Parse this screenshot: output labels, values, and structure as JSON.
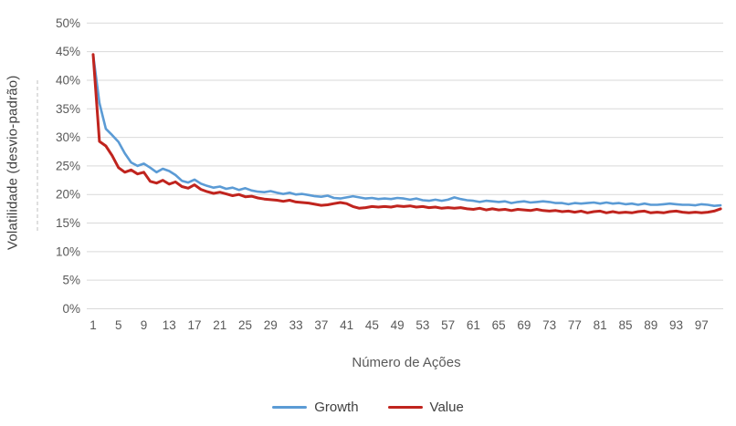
{
  "chart_data": {
    "type": "line",
    "title": "",
    "xlabel": "Número de Ações",
    "ylabel": "Volatilidade (desvio-padrão)",
    "x_min": 1,
    "x_max": 100,
    "ylim_percent": [
      0,
      50
    ],
    "grid": "horizontal",
    "legend_position": "bottom",
    "y_tick_values": [
      0,
      5,
      10,
      15,
      20,
      25,
      30,
      35,
      40,
      45,
      50
    ],
    "y_tick_labels": [
      "0%",
      "5%",
      "10%",
      "15%",
      "20%",
      "25%",
      "30%",
      "35%",
      "40%",
      "45%",
      "50%"
    ],
    "x_tick_values": [
      1,
      5,
      9,
      13,
      17,
      21,
      25,
      29,
      33,
      37,
      41,
      45,
      49,
      53,
      57,
      61,
      65,
      69,
      73,
      77,
      81,
      85,
      89,
      93,
      97
    ],
    "x_tick_labels": [
      "1",
      "5",
      "9",
      "13",
      "17",
      "21",
      "25",
      "29",
      "33",
      "37",
      "41",
      "45",
      "49",
      "53",
      "57",
      "61",
      "65",
      "69",
      "73",
      "77",
      "81",
      "85",
      "89",
      "93",
      "97"
    ],
    "series": [
      {
        "name": "Growth",
        "color": "#5B9BD5",
        "values": [
          44.5,
          36.0,
          31.5,
          30.4,
          29.2,
          27.2,
          25.6,
          25.0,
          25.4,
          24.7,
          23.9,
          24.5,
          24.1,
          23.4,
          22.4,
          22.1,
          22.6,
          21.9,
          21.5,
          21.2,
          21.4,
          21.0,
          21.2,
          20.8,
          21.1,
          20.7,
          20.5,
          20.4,
          20.6,
          20.3,
          20.1,
          20.3,
          20.0,
          20.1,
          19.9,
          19.7,
          19.6,
          19.8,
          19.4,
          19.3,
          19.5,
          19.7,
          19.5,
          19.3,
          19.4,
          19.2,
          19.3,
          19.2,
          19.4,
          19.3,
          19.1,
          19.3,
          19.0,
          18.9,
          19.1,
          18.9,
          19.1,
          19.5,
          19.2,
          19.0,
          18.9,
          18.7,
          18.9,
          18.8,
          18.7,
          18.8,
          18.5,
          18.7,
          18.8,
          18.6,
          18.7,
          18.8,
          18.7,
          18.5,
          18.5,
          18.3,
          18.5,
          18.4,
          18.5,
          18.6,
          18.4,
          18.6,
          18.4,
          18.5,
          18.3,
          18.4,
          18.2,
          18.4,
          18.2,
          18.2,
          18.3,
          18.4,
          18.3,
          18.2,
          18.2,
          18.1,
          18.3,
          18.2,
          18.0,
          18.1
        ]
      },
      {
        "name": "Value",
        "color": "#C0241E",
        "values": [
          44.5,
          29.3,
          28.5,
          26.8,
          24.7,
          23.9,
          24.3,
          23.6,
          23.9,
          22.3,
          22.0,
          22.5,
          21.8,
          22.2,
          21.4,
          21.1,
          21.7,
          20.9,
          20.5,
          20.2,
          20.4,
          20.1,
          19.8,
          20.0,
          19.6,
          19.7,
          19.4,
          19.2,
          19.1,
          19.0,
          18.8,
          19.0,
          18.7,
          18.6,
          18.5,
          18.3,
          18.1,
          18.2,
          18.4,
          18.6,
          18.4,
          17.9,
          17.6,
          17.7,
          17.9,
          17.8,
          17.9,
          17.8,
          18.0,
          17.9,
          18.0,
          17.8,
          17.9,
          17.7,
          17.8,
          17.6,
          17.7,
          17.6,
          17.7,
          17.5,
          17.4,
          17.6,
          17.3,
          17.5,
          17.3,
          17.4,
          17.2,
          17.4,
          17.3,
          17.2,
          17.4,
          17.2,
          17.1,
          17.2,
          17.0,
          17.1,
          16.9,
          17.1,
          16.8,
          17.0,
          17.1,
          16.8,
          17.0,
          16.8,
          16.9,
          16.8,
          17.0,
          17.1,
          16.8,
          16.9,
          16.8,
          17.0,
          17.1,
          16.9,
          16.8,
          16.9,
          16.8,
          16.9,
          17.1,
          17.5
        ]
      }
    ],
    "colors": {
      "gridline": "#D9D9D9",
      "tick_text": "#595959",
      "dashed_guide": "#BFBFBF"
    }
  }
}
